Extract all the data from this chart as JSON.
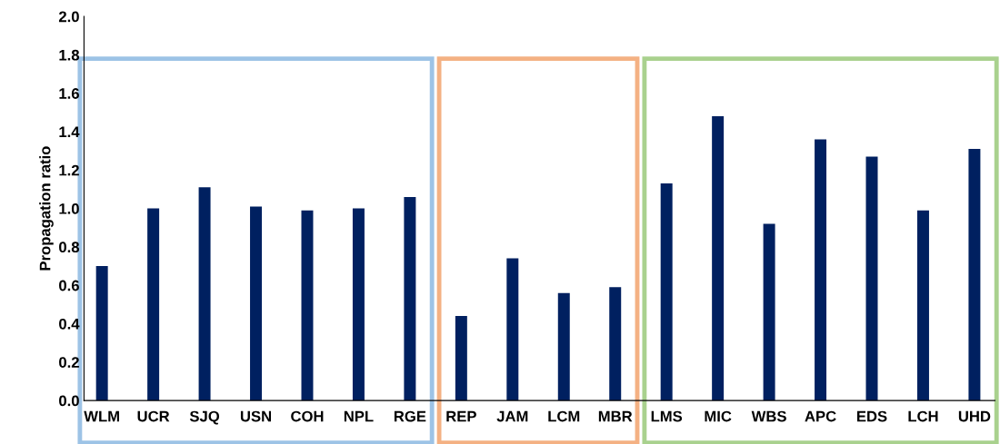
{
  "chart_data": {
    "type": "bar",
    "ylabel": "Propagation ratio",
    "categories": [
      "WLM",
      "UCR",
      "SJQ",
      "USN",
      "COH",
      "NPL",
      "RGE",
      "REP",
      "JAM",
      "LCM",
      "MBR",
      "LMS",
      "MIC",
      "WBS",
      "APC",
      "EDS",
      "LCH",
      "UHD"
    ],
    "values": [
      0.7,
      1.0,
      1.11,
      1.01,
      0.99,
      1.0,
      1.06,
      0.44,
      0.74,
      0.56,
      0.59,
      1.13,
      1.48,
      0.92,
      1.36,
      1.27,
      0.99,
      1.31
    ],
    "color": "#002060",
    "ylim": [
      0,
      2.0
    ],
    "yticks": [
      {
        "value": 0,
        "label": "0.0"
      },
      {
        "value": 0.2,
        "label": "0.2"
      },
      {
        "value": 0.4,
        "label": "0.4"
      },
      {
        "value": 0.6,
        "label": "0.6"
      },
      {
        "value": 0.8,
        "label": "0.8"
      },
      {
        "value": 1.0,
        "label": "1.0"
      },
      {
        "value": 1.2,
        "label": "1.2"
      },
      {
        "value": 1.4,
        "label": "1.4"
      },
      {
        "value": 1.6,
        "label": "1.6"
      },
      {
        "value": 1.8,
        "label": "1.8"
      },
      {
        "value": 2.0,
        "label": "2.0"
      }
    ],
    "grid": false
  }
}
